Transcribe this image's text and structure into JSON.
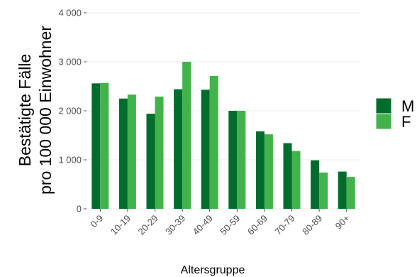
{
  "chart_data": {
    "type": "bar",
    "xlabel": "Altersgruppe",
    "ylabel_line1": "Bestätigte Fälle",
    "ylabel_line2": "pro 100 000 Einwohner",
    "ylim": [
      0,
      4000
    ],
    "yticks": [
      0,
      1000,
      2000,
      3000,
      4000
    ],
    "ytick_labels": [
      "0",
      "1 000",
      "2 000",
      "3 000",
      "4 000"
    ],
    "grid": "horizontal",
    "legend_position": "right",
    "categories": [
      "0-9",
      "10-19",
      "20-29",
      "30-39",
      "40-49",
      "50-59",
      "60-69",
      "70-79",
      "80-89",
      "90+"
    ],
    "series": [
      {
        "name": "M",
        "color": "#006d2c",
        "values": [
          2560,
          2250,
          1940,
          2440,
          2430,
          2000,
          1580,
          1340,
          990,
          760
        ]
      },
      {
        "name": "F",
        "color": "#41b34a",
        "values": [
          2570,
          2330,
          2290,
          3000,
          2710,
          2000,
          1520,
          1180,
          740,
          650
        ]
      }
    ]
  }
}
